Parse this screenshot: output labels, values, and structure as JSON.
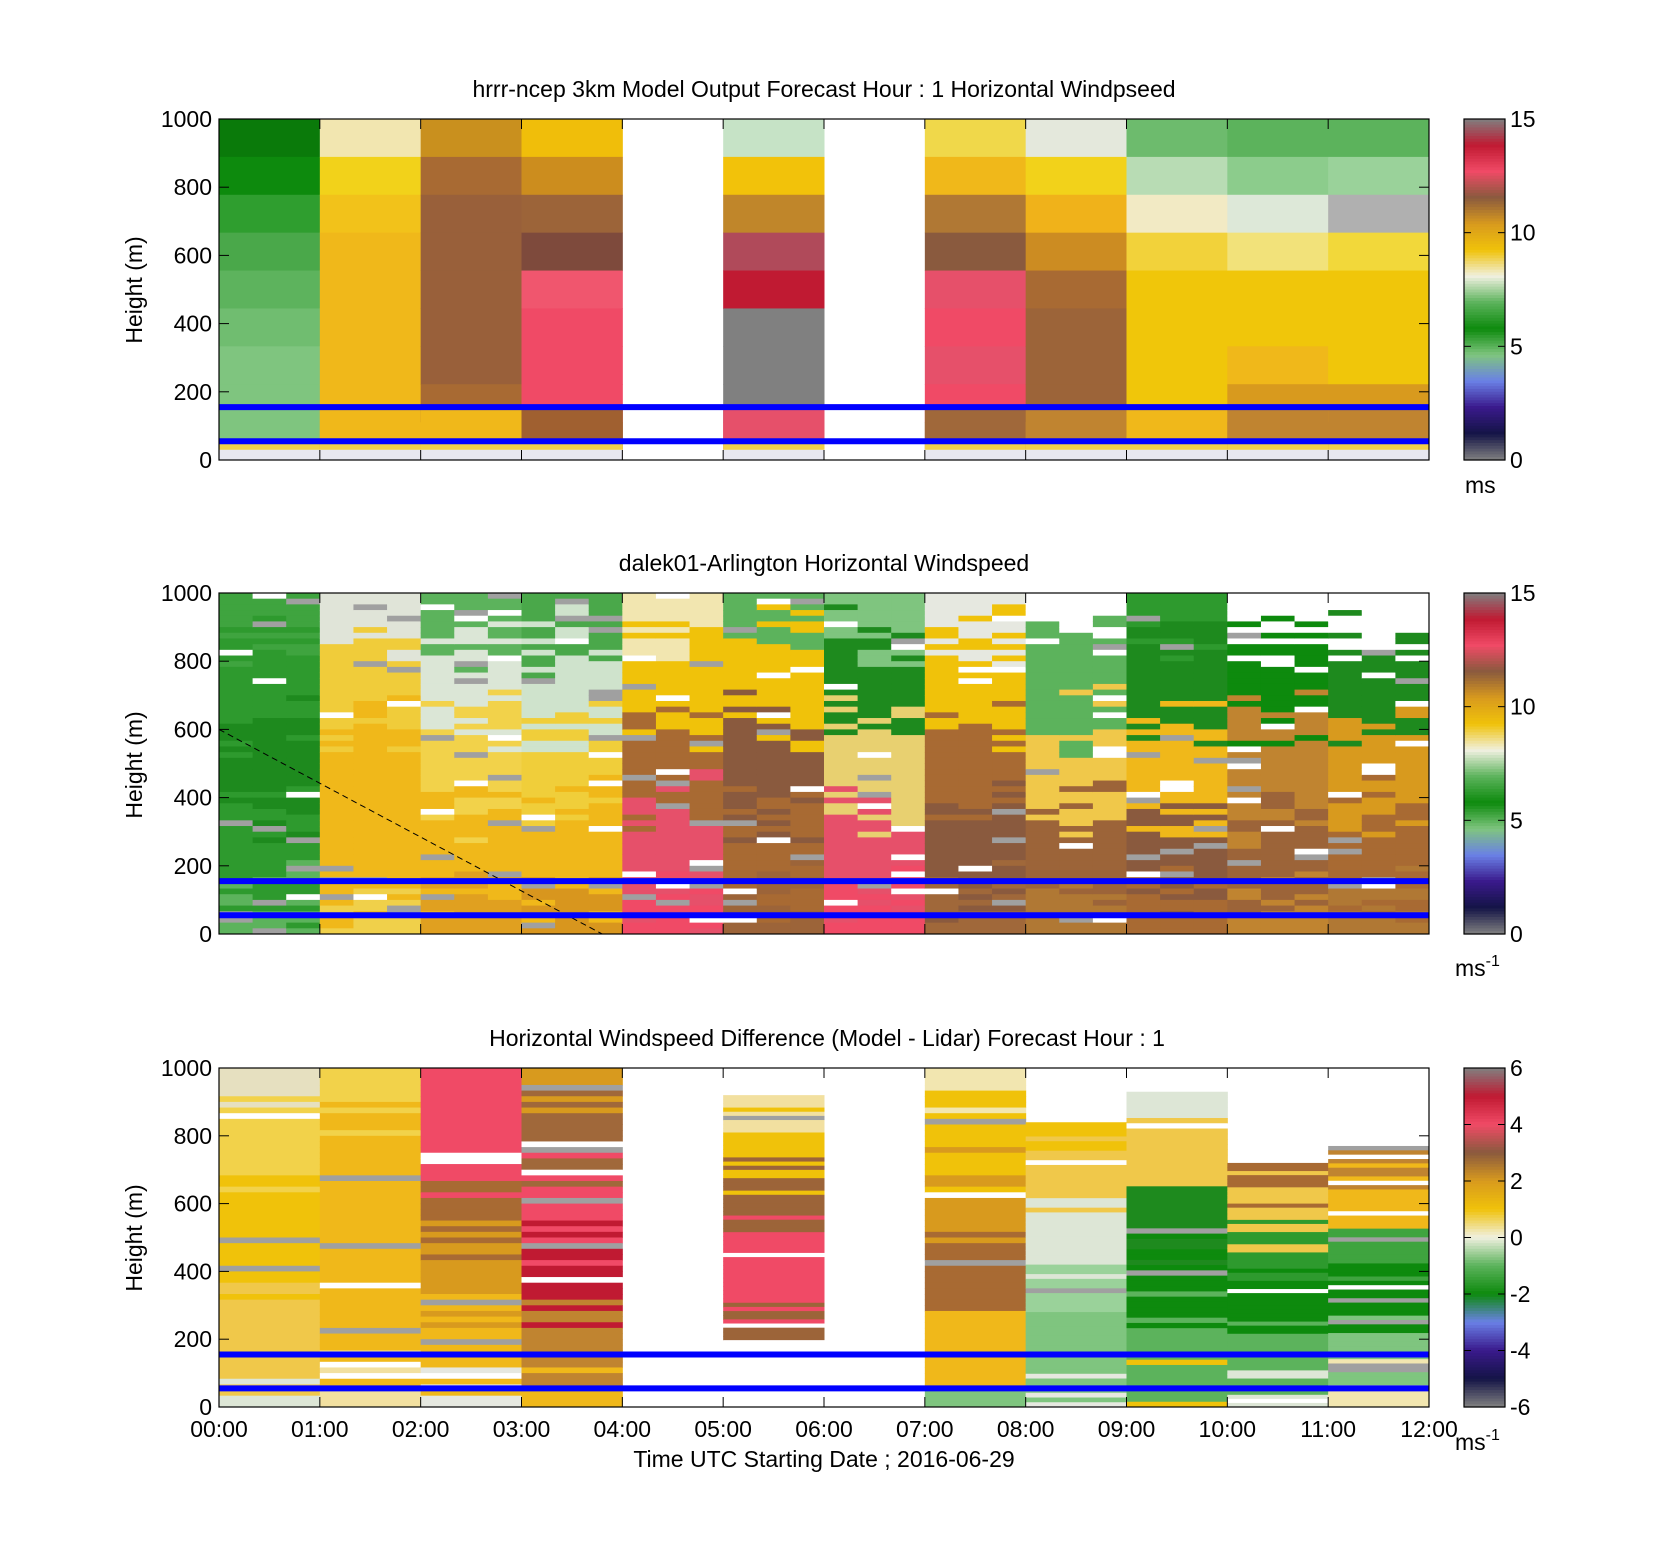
{
  "chart_data": [
    {
      "type": "heatmap",
      "title": "hrrr-ncep 3km Model Output   Forecast Hour : 1 Horizontal Windpseed",
      "xlabel": "",
      "ylabel": "Height (m)",
      "ylim": [
        0,
        1000
      ],
      "yticks": [
        "0",
        "200",
        "400",
        "600",
        "800",
        "1000"
      ],
      "xlim": [
        0,
        12
      ],
      "colorbar": {
        "range": [
          0,
          15
        ],
        "ticks": [
          "0",
          "5",
          "10",
          "15"
        ],
        "unit": "ms"
      },
      "reference_lines_m": [
        155,
        55
      ],
      "missing_hours": [
        4,
        6
      ],
      "hourly_colors_top_to_bottom": [
        [
          "#0a7a0a",
          "#0d8a0d",
          "#2f9e2f",
          "#4aa84a",
          "#5db35d",
          "#70bd70",
          "#7fc57f",
          "#7fc57f",
          "#7fc57f"
        ],
        [
          "#f2e6b0",
          "#f2d21a",
          "#f2c21a",
          "#f0b81a",
          "#f0b81a",
          "#f0b81a",
          "#f0b81a",
          "#f0b81a",
          "#f0b81a"
        ],
        [
          "#c9901e",
          "#a86a33",
          "#99603a",
          "#99603a",
          "#99603a",
          "#99603a",
          "#99603a",
          "#a86a33",
          "#f0b81a"
        ],
        [
          "#f0be0a",
          "#cc8d1e",
          "#9c6439",
          "#7e4a3c",
          "#f0566e",
          "#f04a66",
          "#f04a66",
          "#f04a66",
          "#a06030"
        ],
        null,
        [
          "#c6e3c6",
          "#f2c20a",
          "#c0862a",
          "#b04a5a",
          "#c01a32",
          "#808080",
          "#808080",
          "#808080",
          "#e6506a"
        ],
        null,
        [
          "#f0d84a",
          "#f0b81a",
          "#b07834",
          "#8a5a3e",
          "#e6506a",
          "#f04a66",
          "#e6506a",
          "#f04a66",
          "#a0683a"
        ],
        [
          "#e4e8dc",
          "#f2d21a",
          "#f0b21a",
          "#cc8c22",
          "#a86a33",
          "#9c6439",
          "#9c6439",
          "#9c6439",
          "#c08430"
        ],
        [
          "#6dbb6d",
          "#b8dcb4",
          "#f2eac4",
          "#f2d23a",
          "#f0c60a",
          "#f0c60a",
          "#f0c60a",
          "#f0c60a",
          "#f0b81a"
        ],
        [
          "#5cb35c",
          "#8ccc8c",
          "#dde8d8",
          "#f2e27a",
          "#f0c60a",
          "#f0c60a",
          "#f0b81a",
          "#d89a1e",
          "#c08430"
        ],
        [
          "#5cb35c",
          "#9ad29a",
          "#b0b0b0",
          "#f2d83a",
          "#f0c60a",
          "#f0c60a",
          "#f0c60a",
          "#d89a1e",
          "#c08430"
        ]
      ]
    },
    {
      "type": "heatmap",
      "title": "dalek01-Arlington  Horizontal Windspeed",
      "xlabel": "",
      "ylabel": "Height (m)",
      "ylim": [
        0,
        1000
      ],
      "yticks": [
        "0",
        "200",
        "400",
        "600",
        "800",
        "1000"
      ],
      "xlim": [
        0,
        12
      ],
      "colorbar": {
        "range": [
          0,
          15
        ],
        "ticks": [
          "0",
          "5",
          "10",
          "15"
        ],
        "unit": "ms",
        "unit_exp": "-1"
      },
      "reference_lines_m": [
        155,
        55
      ],
      "dashed_line": {
        "x_hours": [
          0,
          3.8
        ],
        "y_m": [
          600,
          0
        ]
      },
      "hourly_profile_bands_top_to_bottom": [
        [
          "#3fa43f",
          "#2e9a2e",
          "#1e8a1e",
          "#2e9a2e",
          "#5cb35c"
        ],
        [
          "#e0e4d8",
          "#f0cc3a",
          "#f0b81a",
          "#f0b81a",
          "#f0d04a"
        ],
        [
          "#5cb35c",
          "#dbe6d6",
          "#f2d24a",
          "#f0b81a",
          "#e0a020"
        ],
        [
          "#4aa84a",
          "#cfe3cc",
          "#f0ce3a",
          "#f0b81a",
          "#d8961e"
        ],
        [
          "#f2e6b0",
          "#f0c20a",
          "#a86a33",
          "#e6506a",
          "#f04a66"
        ],
        [
          "#5cb35c",
          "#f0c20a",
          "#8a5a3e",
          "#a86a33",
          "#9c6439"
        ],
        [
          "#7fc57f",
          "#1e8a1e",
          "#e8d070",
          "#e6506a",
          "#f04a66"
        ],
        [
          "#e6e8e0",
          "#f0c20a",
          "#a86a33",
          "#8a5a3e",
          "#a0683a"
        ],
        [
          "#ffffff",
          "#5cb35c",
          "#f0c84a",
          "#9c6439",
          "#b07834"
        ],
        [
          "#2e9a2e",
          "#1e8a1e",
          "#f0b81a",
          "#8a5a3e",
          "#a86a33"
        ],
        [
          "#ffffff",
          "#0d8a0d",
          "#c08430",
          "#9c6439",
          "#c08430"
        ],
        [
          "#ffffff",
          "#1e8a1e",
          "#d89a1e",
          "#a86a33",
          "#b07834"
        ]
      ]
    },
    {
      "type": "heatmap",
      "title": "Horizontal Windspeed Difference (Model - Lidar) Forecast Hour : 1",
      "xlabel": "Time UTC  Starting Date ; 2016-06-29",
      "ylabel": "Height (m)",
      "ylim": [
        0,
        1000
      ],
      "yticks": [
        "0",
        "200",
        "400",
        "600",
        "800",
        "1000"
      ],
      "xticks": [
        "00:00",
        "01:00",
        "02:00",
        "03:00",
        "04:00",
        "05:00",
        "06:00",
        "07:00",
        "08:00",
        "09:00",
        "10:00",
        "11:00",
        "12:00"
      ],
      "xlim": [
        0,
        12
      ],
      "colorbar": {
        "range": [
          -6,
          6
        ],
        "ticks": [
          "-6",
          "-4",
          "-2",
          "0",
          "2",
          "4",
          "6"
        ],
        "unit": "ms",
        "unit_exp": "-1"
      },
      "reference_lines_m": [
        155,
        55
      ],
      "data_top_m": [
        1000,
        1000,
        1000,
        1000,
        null,
        920,
        null,
        1000,
        840,
        930,
        720,
        770
      ],
      "data_bottom_m": [
        0,
        0,
        0,
        0,
        null,
        185,
        null,
        0,
        0,
        0,
        0,
        0
      ],
      "hourly_profile_bands_top_to_bottom": [
        [
          "#e6e0c0",
          "#f2d24a",
          "#f0c20a",
          "#f0c20a",
          "#f0c84a",
          "#dde6d6"
        ],
        [
          "#f2d24a",
          "#f0b81a",
          "#f0b81a",
          "#f0b81a",
          "#f0b81a",
          "#f2e0a0"
        ],
        [
          "#f04a66",
          "#f04a66",
          "#a86a33",
          "#d89a1e",
          "#f0b81a",
          "#e6e8e0"
        ],
        [
          "#d89a1e",
          "#a0683a",
          "#f04a66",
          "#c01a32",
          "#c08430",
          "#f0b81a"
        ],
        null,
        [
          "#f2e0a0",
          "#f0c20a",
          "#9c6439",
          "#f04a66",
          "#f04a66",
          "#9c6439"
        ],
        null,
        [
          "#f2e6b0",
          "#f0c20a",
          "#d89a1e",
          "#a86a33",
          "#f0b81a",
          "#7fc57f"
        ],
        [
          "#f0c20a",
          "#f0c84a",
          "#dde6d6",
          "#9ad29a",
          "#7fc57f",
          "#e6e8e0"
        ],
        [
          "#dde6d6",
          "#f0c84a",
          "#1e8a1e",
          "#0d8a0d",
          "#5cb35c",
          "#f0c20a"
        ],
        [
          "#a86a33",
          "#f0c84a",
          "#2e9a2e",
          "#0d8a0d",
          "#5cb35c",
          "#dde6d6"
        ],
        [
          "#c08430",
          "#f0b81a",
          "#3fa43f",
          "#0d8a0d",
          "#7fc57f",
          "#f2e6b0"
        ]
      ]
    }
  ],
  "colorbar_palette": {
    "windspeed": [
      "#808080",
      "#141446",
      "#3a1a8c",
      "#6a80e6",
      "#7fc57f",
      "#0d8a0d",
      "#5cb35c",
      "#f0f0e0",
      "#f0c20a",
      "#d89a1e",
      "#8a5a3e",
      "#f04a66",
      "#c01a32",
      "#808080"
    ],
    "difference": [
      "#808080",
      "#141446",
      "#3a1a8c",
      "#6a80e6",
      "#0d8a0d",
      "#5cb35c",
      "#f0f0e0",
      "#f0c20a",
      "#d89a1e",
      "#8a5a3e",
      "#f04a66",
      "#c01a32",
      "#808080"
    ]
  },
  "reference_line_color": "#0000ff"
}
